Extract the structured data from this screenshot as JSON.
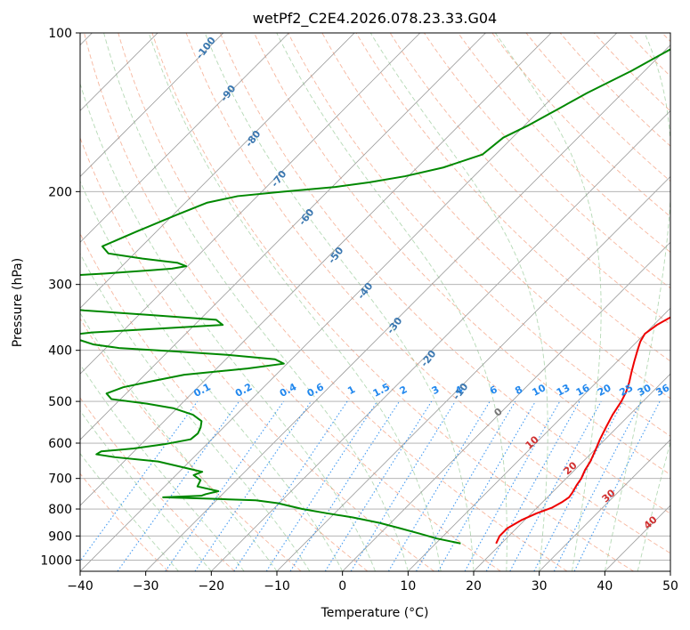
{
  "chart_data": {
    "type": "line",
    "title": "wetPf2_C2E4.2026.078.23.33.G04",
    "xlabel": "Temperature (°C)",
    "ylabel": "Pressure (hPa)",
    "xlim": [
      -40,
      50
    ],
    "ylim": [
      1050,
      100
    ],
    "y_scale": "log",
    "skew": "skew-T",
    "grid": true,
    "x_ticks": [
      "−40",
      "−30",
      "−20",
      "−10",
      "0",
      "10",
      "20",
      "30",
      "40",
      "50"
    ],
    "y_ticks": [
      "100",
      "200",
      "300",
      "400",
      "500",
      "600",
      "700",
      "800",
      "900",
      "1000"
    ],
    "x_tick_values": [
      -40,
      -30,
      -20,
      -10,
      0,
      10,
      20,
      30,
      40,
      50
    ],
    "y_tick_values": [
      100,
      200,
      300,
      400,
      500,
      600,
      700,
      800,
      900,
      1000
    ],
    "series": [
      {
        "color": "#ee0000",
        "points": [
          [
            930,
            19.2
          ],
          [
            900,
            18.6
          ],
          [
            870,
            18.6
          ],
          [
            840,
            19.5
          ],
          [
            815,
            20.8
          ],
          [
            795,
            22.3
          ],
          [
            775,
            23.0
          ],
          [
            760,
            23.3
          ],
          [
            745,
            23.1
          ],
          [
            720,
            22.6
          ],
          [
            700,
            22.3
          ],
          [
            675,
            21.6
          ],
          [
            650,
            21.1
          ],
          [
            620,
            20.2
          ],
          [
            590,
            19.2
          ],
          [
            560,
            18.3
          ],
          [
            530,
            17.4
          ],
          [
            500,
            16.7
          ],
          [
            480,
            16.0
          ],
          [
            460,
            15.0
          ],
          [
            440,
            13.8
          ],
          [
            420,
            12.6
          ],
          [
            400,
            11.4
          ],
          [
            385,
            10.5
          ],
          [
            372,
            10.0
          ],
          [
            358,
            10.5
          ],
          [
            345,
            11.5
          ],
          [
            332,
            13.0
          ],
          [
            320,
            14.2
          ],
          [
            308,
            14.4
          ],
          [
            296,
            13.4
          ],
          [
            285,
            11.6
          ],
          [
            275,
            9.4
          ],
          [
            265,
            7.7
          ],
          [
            250,
            6.2
          ],
          [
            238,
            5.6
          ],
          [
            222,
            5.0
          ],
          [
            205,
            3.4
          ],
          [
            190,
            1.3
          ],
          [
            175,
            -1.4
          ],
          [
            160,
            -3.4
          ],
          [
            148,
            -5.5
          ],
          [
            135,
            -7.5
          ],
          [
            125,
            -9.5
          ],
          [
            115,
            -12.5
          ],
          [
            107,
            -15.3
          ],
          [
            100,
            -17.3
          ]
        ]
      },
      {
        "color": "#008800",
        "points": [
          [
            930,
            13.8
          ],
          [
            910,
            9.4
          ],
          [
            890,
            5.9
          ],
          [
            870,
            2.2
          ],
          [
            850,
            -1.7
          ],
          [
            830,
            -6.6
          ],
          [
            815,
            -11.2
          ],
          [
            800,
            -15.6
          ],
          [
            780,
            -20.2
          ],
          [
            770,
            -24.0
          ],
          [
            765,
            -31.0
          ],
          [
            760,
            -38.6
          ],
          [
            755,
            -33.0
          ],
          [
            750,
            -32.6
          ],
          [
            740,
            -31.1
          ],
          [
            725,
            -35.0
          ],
          [
            705,
            -35.5
          ],
          [
            690,
            -37.3
          ],
          [
            680,
            -36.5
          ],
          [
            665,
            -40.6
          ],
          [
            650,
            -44.8
          ],
          [
            638,
            -52.0
          ],
          [
            630,
            -55.3
          ],
          [
            622,
            -55.0
          ],
          [
            614,
            -50.5
          ],
          [
            603,
            -46.5
          ],
          [
            590,
            -43.2
          ],
          [
            575,
            -43.0
          ],
          [
            560,
            -43.5
          ],
          [
            545,
            -44.3
          ],
          [
            530,
            -46.6
          ],
          [
            515,
            -50.6
          ],
          [
            505,
            -55.3
          ],
          [
            495,
            -61.4
          ],
          [
            483,
            -63.0
          ],
          [
            470,
            -61.4
          ],
          [
            458,
            -58.0
          ],
          [
            445,
            -54.0
          ],
          [
            433,
            -45.3
          ],
          [
            424,
            -40.5
          ],
          [
            416,
            -42.5
          ],
          [
            408,
            -50.5
          ],
          [
            402,
            -58.7
          ],
          [
            396,
            -68.0
          ],
          [
            390,
            -72.4
          ],
          [
            383,
            -75.0
          ],
          [
            375,
            -78.3
          ],
          [
            370,
            -74.5
          ],
          [
            365,
            -66.7
          ],
          [
            358,
            -55.7
          ],
          [
            350,
            -57.5
          ],
          [
            343,
            -68.0
          ],
          [
            336,
            -79.0
          ],
          [
            327,
            -90.0
          ],
          [
            322,
            -99.0
          ],
          [
            318,
            -108.0
          ],
          [
            296,
            -110.0
          ],
          [
            290,
            -89.5
          ],
          [
            286,
            -81.4
          ],
          [
            282,
            -75.0
          ],
          [
            280,
            -72.0
          ],
          [
            277,
            -70.2
          ],
          [
            273,
            -72.0
          ],
          [
            268,
            -78.0
          ],
          [
            262,
            -84.0
          ],
          [
            254,
            -86.0
          ],
          [
            238,
            -83.0
          ],
          [
            222,
            -79.6
          ],
          [
            210,
            -76.7
          ],
          [
            204,
            -73.0
          ],
          [
            200,
            -66.7
          ],
          [
            196,
            -59.5
          ],
          [
            192,
            -55.0
          ],
          [
            187,
            -50.5
          ],
          [
            180,
            -46.0
          ],
          [
            170,
            -42.0
          ],
          [
            158,
            -41.4
          ],
          [
            150,
            -39.5
          ],
          [
            140,
            -37.5
          ],
          [
            130,
            -35.4
          ],
          [
            118,
            -32.0
          ],
          [
            110,
            -30.0
          ],
          [
            100,
            -27.3
          ]
        ]
      }
    ],
    "annotations": {
      "dry_adiabat_labels": [
        "-100",
        "-90",
        "-80",
        "-70",
        "-60",
        "-50",
        "-40",
        "-30",
        "-20",
        "-10"
      ],
      "mixing_ratio_labels": [
        "0.1",
        "0.2",
        "0.4",
        "0.6",
        "1",
        "1.5",
        "2",
        "3",
        "4",
        "6",
        "8",
        "10",
        "13",
        "16",
        "20",
        "25",
        "30",
        "36"
      ],
      "moist_adiabat_labels": [
        "0",
        "10",
        "20",
        "30",
        "40"
      ]
    },
    "colors": {
      "dry_adiabat": "#3a77b0",
      "mixing_ratio": "#2288ee",
      "moist_adiabat": "#d03030",
      "moist_zero": "#777777",
      "temperature": "#ee0000",
      "dewpoint": "#008800",
      "isotherm": "#999999",
      "pressure_grid": "#aaaaaa"
    }
  }
}
